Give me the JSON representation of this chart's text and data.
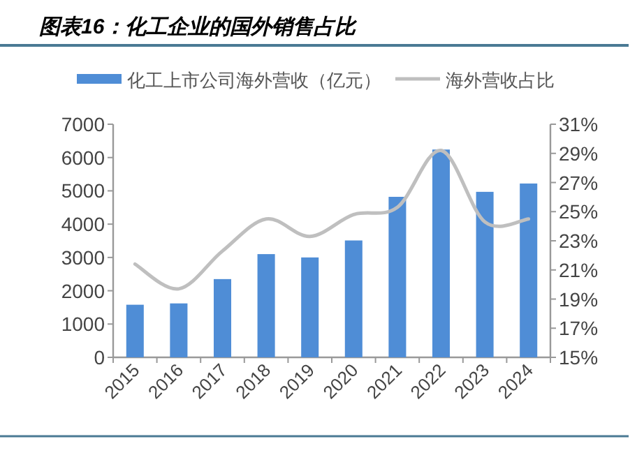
{
  "chart_data": {
    "type": "bar",
    "title": "图表16：化工企业的国外销售占比",
    "categories": [
      "2015",
      "2016",
      "2017",
      "2018",
      "2019",
      "2020",
      "2021",
      "2022",
      "2023",
      "2024"
    ],
    "series": [
      {
        "name": "化工上市公司海外营收（亿元）",
        "color": "#4f8dd6",
        "values": [
          1580,
          1620,
          2350,
          3100,
          3000,
          3510,
          4820,
          6240,
          4970,
          5220
        ]
      },
      {
        "name": "海外营收占比",
        "type": "line",
        "axis": "y2",
        "color": "#bfbfbf",
        "values": [
          21.4,
          19.7,
          22.3,
          24.5,
          23.3,
          24.8,
          25.3,
          29.2,
          24.3,
          24.5
        ]
      }
    ],
    "ylim": [
      0,
      7000
    ],
    "yticks": [
      0,
      1000,
      2000,
      3000,
      4000,
      5000,
      6000,
      7000
    ],
    "y2lim": [
      15,
      31
    ],
    "y2ticks": [
      {
        "value": 15,
        "label": "15%"
      },
      {
        "value": 17,
        "label": "17%"
      },
      {
        "value": 19,
        "label": "19%"
      },
      {
        "value": 21,
        "label": "21%"
      },
      {
        "value": 23,
        "label": "23%"
      },
      {
        "value": 25,
        "label": "25%"
      },
      {
        "value": 27,
        "label": "27%"
      },
      {
        "value": 29,
        "label": "29%"
      },
      {
        "value": 31,
        "label": "31%"
      }
    ],
    "legend": "top"
  }
}
